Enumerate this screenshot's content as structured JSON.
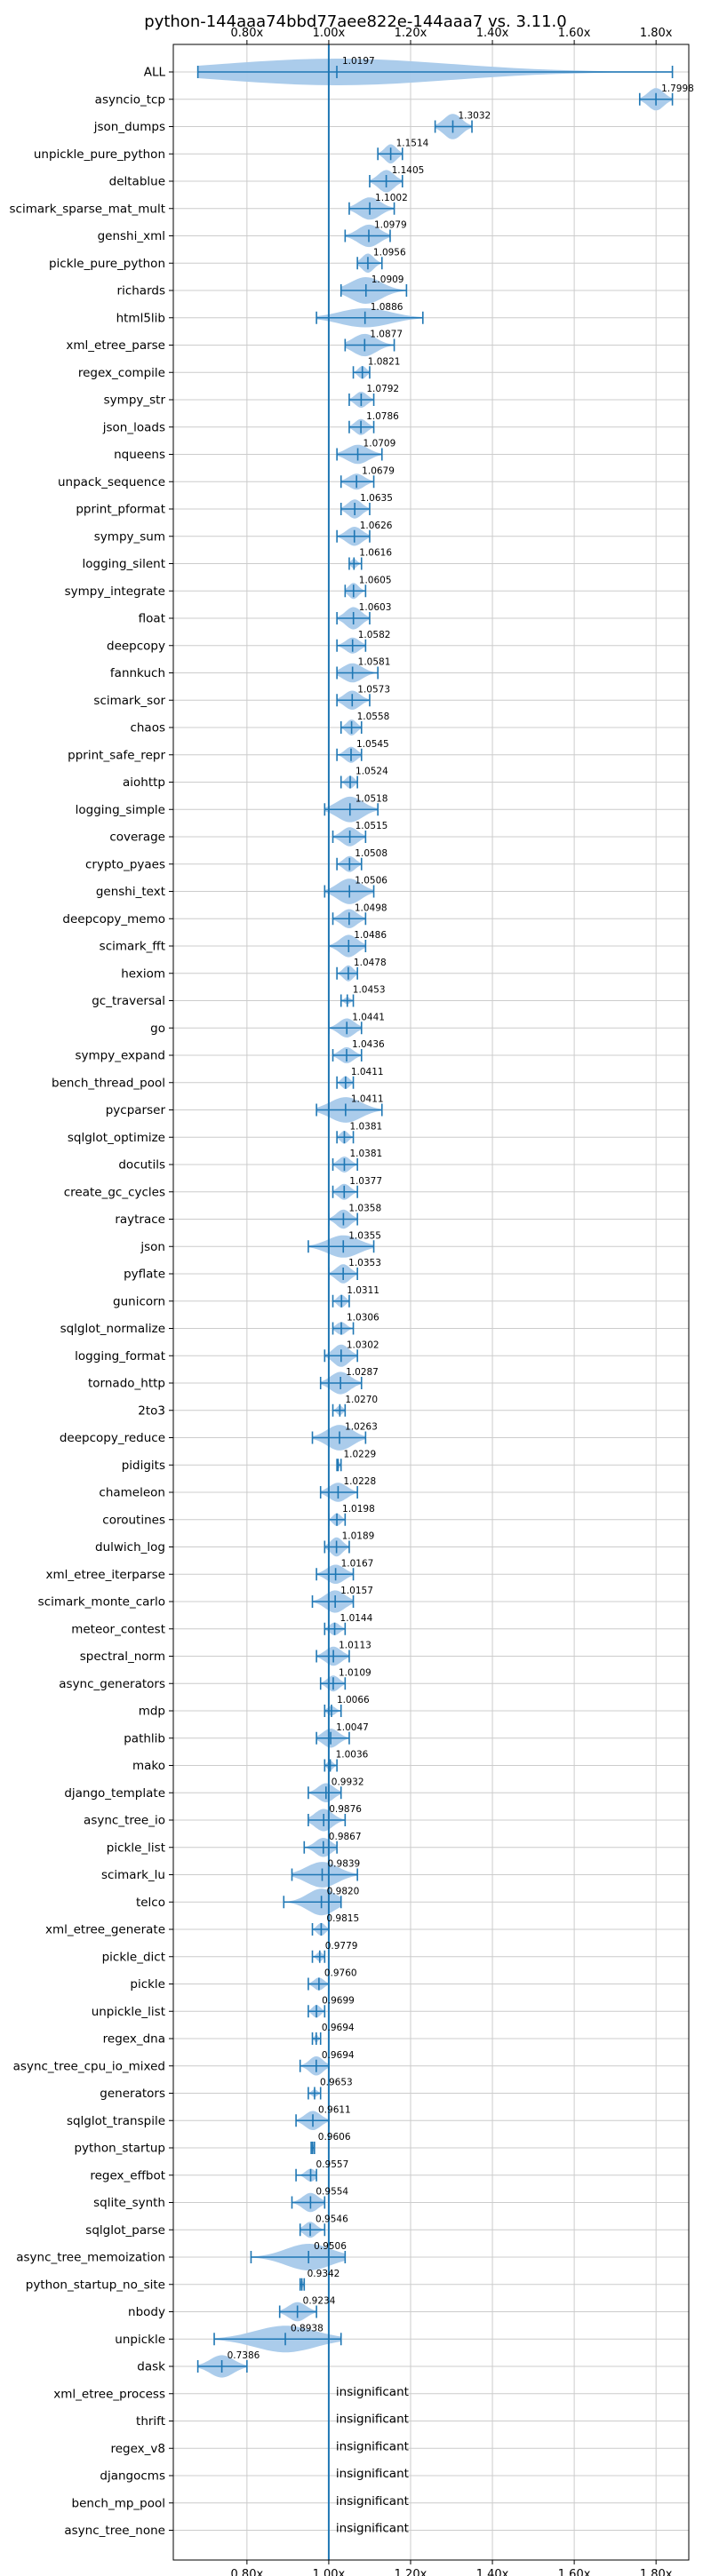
{
  "chart_data": {
    "type": "violin",
    "title": "python-144aaa74bbd77aee822e-144aaa7 vs. 3.11.0",
    "xlim": [
      0.62,
      1.88
    ],
    "x_ticks": [
      0.8,
      1.0,
      1.2,
      1.4,
      1.6,
      1.8
    ],
    "x_tick_labels": [
      "0.80x",
      "1.00x",
      "1.20x",
      "1.40x",
      "1.60x",
      "1.80x"
    ],
    "x_tick_position": "top-and-bottom",
    "reference_line": 1.0,
    "grid": true,
    "colors": {
      "violin": "#a7c9ea",
      "line": "#1f77b4",
      "grid": "#cccccc"
    },
    "insignificant_text": "insignificant",
    "benchmarks": [
      {
        "name": "ALL",
        "value": 1.0197,
        "label": "1.0197",
        "min": 0.68,
        "max": 1.84,
        "spread": 0.07
      },
      {
        "name": "asyncio_tcp",
        "value": 1.7998,
        "label": "1.7998",
        "min": 1.76,
        "max": 1.84,
        "spread": 0.035
      },
      {
        "name": "json_dumps",
        "value": 1.3032,
        "label": "1.3032",
        "min": 1.26,
        "max": 1.35,
        "spread": 0.04
      },
      {
        "name": "unpickle_pure_python",
        "value": 1.1514,
        "label": "1.1514",
        "min": 1.12,
        "max": 1.18,
        "spread": 0.03
      },
      {
        "name": "deltablue",
        "value": 1.1405,
        "label": "1.1405",
        "min": 1.1,
        "max": 1.18,
        "spread": 0.035
      },
      {
        "name": "scimark_sparse_mat_mult",
        "value": 1.1002,
        "label": "1.1002",
        "min": 1.05,
        "max": 1.16,
        "spread": 0.035
      },
      {
        "name": "genshi_xml",
        "value": 1.0979,
        "label": "1.0979",
        "min": 1.04,
        "max": 1.15,
        "spread": 0.035
      },
      {
        "name": "pickle_pure_python",
        "value": 1.0956,
        "label": "1.0956",
        "min": 1.07,
        "max": 1.13,
        "spread": 0.03
      },
      {
        "name": "richards",
        "value": 1.0909,
        "label": "1.0909",
        "min": 1.03,
        "max": 1.19,
        "spread": 0.05
      },
      {
        "name": "html5lib",
        "value": 1.0886,
        "label": "1.0886",
        "min": 0.97,
        "max": 1.23,
        "spread": 0.03
      },
      {
        "name": "xml_etree_parse",
        "value": 1.0877,
        "label": "1.0877",
        "min": 1.04,
        "max": 1.16,
        "spread": 0.035
      },
      {
        "name": "regex_compile",
        "value": 1.0821,
        "label": "1.0821",
        "min": 1.06,
        "max": 1.1,
        "spread": 0.02
      },
      {
        "name": "sympy_str",
        "value": 1.0792,
        "label": "1.0792",
        "min": 1.05,
        "max": 1.11,
        "spread": 0.025
      },
      {
        "name": "json_loads",
        "value": 1.0786,
        "label": "1.0786",
        "min": 1.05,
        "max": 1.11,
        "spread": 0.025
      },
      {
        "name": "nqueens",
        "value": 1.0709,
        "label": "1.0709",
        "min": 1.02,
        "max": 1.13,
        "spread": 0.03
      },
      {
        "name": "unpack_sequence",
        "value": 1.0679,
        "label": "1.0679",
        "min": 1.03,
        "max": 1.11,
        "spread": 0.025
      },
      {
        "name": "pprint_pformat",
        "value": 1.0635,
        "label": "1.0635",
        "min": 1.03,
        "max": 1.1,
        "spread": 0.03
      },
      {
        "name": "sympy_sum",
        "value": 1.0626,
        "label": "1.0626",
        "min": 1.02,
        "max": 1.1,
        "spread": 0.03
      },
      {
        "name": "logging_silent",
        "value": 1.0616,
        "label": "1.0616",
        "min": 1.05,
        "max": 1.08,
        "spread": 0.015
      },
      {
        "name": "sympy_integrate",
        "value": 1.0605,
        "label": "1.0605",
        "min": 1.04,
        "max": 1.09,
        "spread": 0.025
      },
      {
        "name": "float",
        "value": 1.0603,
        "label": "1.0603",
        "min": 1.02,
        "max": 1.1,
        "spread": 0.035
      },
      {
        "name": "deepcopy",
        "value": 1.0582,
        "label": "1.0582",
        "min": 1.02,
        "max": 1.09,
        "spread": 0.025
      },
      {
        "name": "fannkuch",
        "value": 1.0581,
        "label": "1.0581",
        "min": 1.02,
        "max": 1.12,
        "spread": 0.03
      },
      {
        "name": "scimark_sor",
        "value": 1.0573,
        "label": "1.0573",
        "min": 1.02,
        "max": 1.1,
        "spread": 0.03
      },
      {
        "name": "chaos",
        "value": 1.0558,
        "label": "1.0558",
        "min": 1.03,
        "max": 1.08,
        "spread": 0.025
      },
      {
        "name": "pprint_safe_repr",
        "value": 1.0545,
        "label": "1.0545",
        "min": 1.02,
        "max": 1.08,
        "spread": 0.025
      },
      {
        "name": "aiohttp",
        "value": 1.0524,
        "label": "1.0524",
        "min": 1.03,
        "max": 1.07,
        "spread": 0.02
      },
      {
        "name": "logging_simple",
        "value": 1.0518,
        "label": "1.0518",
        "min": 0.99,
        "max": 1.12,
        "spread": 0.04
      },
      {
        "name": "coverage",
        "value": 1.0515,
        "label": "1.0515",
        "min": 1.01,
        "max": 1.09,
        "spread": 0.03
      },
      {
        "name": "crypto_pyaes",
        "value": 1.0508,
        "label": "1.0508",
        "min": 1.02,
        "max": 1.08,
        "spread": 0.025
      },
      {
        "name": "genshi_text",
        "value": 1.0506,
        "label": "1.0506",
        "min": 0.99,
        "max": 1.11,
        "spread": 0.04
      },
      {
        "name": "deepcopy_memo",
        "value": 1.0498,
        "label": "1.0498",
        "min": 1.01,
        "max": 1.09,
        "spread": 0.03
      },
      {
        "name": "scimark_fft",
        "value": 1.0486,
        "label": "1.0486",
        "min": 1.0,
        "max": 1.09,
        "spread": 0.035
      },
      {
        "name": "hexiom",
        "value": 1.0478,
        "label": "1.0478",
        "min": 1.02,
        "max": 1.07,
        "spread": 0.025
      },
      {
        "name": "gc_traversal",
        "value": 1.0453,
        "label": "1.0453",
        "min": 1.03,
        "max": 1.06,
        "spread": 0.01
      },
      {
        "name": "go",
        "value": 1.0441,
        "label": "1.0441",
        "min": 1.0,
        "max": 1.08,
        "spread": 0.03
      },
      {
        "name": "sympy_expand",
        "value": 1.0436,
        "label": "1.0436",
        "min": 1.01,
        "max": 1.08,
        "spread": 0.025
      },
      {
        "name": "bench_thread_pool",
        "value": 1.0411,
        "label": "1.0411",
        "min": 1.02,
        "max": 1.06,
        "spread": 0.02
      },
      {
        "name": "pycparser",
        "value": 1.0411,
        "label": "1.0411",
        "min": 0.97,
        "max": 1.13,
        "spread": 0.04
      },
      {
        "name": "sqlglot_optimize",
        "value": 1.0381,
        "label": "1.0381",
        "min": 1.02,
        "max": 1.06,
        "spread": 0.02
      },
      {
        "name": "docutils",
        "value": 1.0381,
        "label": "1.0381",
        "min": 1.01,
        "max": 1.07,
        "spread": 0.025
      },
      {
        "name": "create_gc_cycles",
        "value": 1.0377,
        "label": "1.0377",
        "min": 1.01,
        "max": 1.07,
        "spread": 0.025
      },
      {
        "name": "raytrace",
        "value": 1.0358,
        "label": "1.0358",
        "min": 1.0,
        "max": 1.07,
        "spread": 0.03
      },
      {
        "name": "json",
        "value": 1.0355,
        "label": "1.0355",
        "min": 0.95,
        "max": 1.11,
        "spread": 0.035
      },
      {
        "name": "pyflate",
        "value": 1.0353,
        "label": "1.0353",
        "min": 1.0,
        "max": 1.07,
        "spread": 0.03
      },
      {
        "name": "gunicorn",
        "value": 1.0311,
        "label": "1.0311",
        "min": 1.01,
        "max": 1.05,
        "spread": 0.02
      },
      {
        "name": "sqlglot_normalize",
        "value": 1.0306,
        "label": "1.0306",
        "min": 1.01,
        "max": 1.06,
        "spread": 0.02
      },
      {
        "name": "logging_format",
        "value": 1.0302,
        "label": "1.0302",
        "min": 0.99,
        "max": 1.07,
        "spread": 0.035
      },
      {
        "name": "tornado_http",
        "value": 1.0287,
        "label": "1.0287",
        "min": 0.98,
        "max": 1.08,
        "spread": 0.035
      },
      {
        "name": "2to3",
        "value": 1.027,
        "label": "1.0270",
        "min": 1.01,
        "max": 1.04,
        "spread": 0.015
      },
      {
        "name": "deepcopy_reduce",
        "value": 1.0263,
        "label": "1.0263",
        "min": 0.96,
        "max": 1.09,
        "spread": 0.04
      },
      {
        "name": "pidigits",
        "value": 1.0229,
        "label": "1.0229",
        "min": 1.02,
        "max": 1.03,
        "spread": 0.006
      },
      {
        "name": "chameleon",
        "value": 1.0228,
        "label": "1.0228",
        "min": 0.98,
        "max": 1.07,
        "spread": 0.03
      },
      {
        "name": "coroutines",
        "value": 1.0198,
        "label": "1.0198",
        "min": 1.0,
        "max": 1.04,
        "spread": 0.02
      },
      {
        "name": "dulwich_log",
        "value": 1.0189,
        "label": "1.0189",
        "min": 0.99,
        "max": 1.05,
        "spread": 0.03
      },
      {
        "name": "xml_etree_iterparse",
        "value": 1.0167,
        "label": "1.0167",
        "min": 0.97,
        "max": 1.06,
        "spread": 0.03
      },
      {
        "name": "scimark_monte_carlo",
        "value": 1.0157,
        "label": "1.0157",
        "min": 0.96,
        "max": 1.06,
        "spread": 0.035
      },
      {
        "name": "meteor_contest",
        "value": 1.0144,
        "label": "1.0144",
        "min": 0.99,
        "max": 1.04,
        "spread": 0.02
      },
      {
        "name": "spectral_norm",
        "value": 1.0113,
        "label": "1.0113",
        "min": 0.97,
        "max": 1.05,
        "spread": 0.03
      },
      {
        "name": "async_generators",
        "value": 1.0109,
        "label": "1.0109",
        "min": 0.98,
        "max": 1.04,
        "spread": 0.025
      },
      {
        "name": "mdp",
        "value": 1.0066,
        "label": "1.0066",
        "min": 0.99,
        "max": 1.03,
        "spread": 0.015
      },
      {
        "name": "pathlib",
        "value": 1.0047,
        "label": "1.0047",
        "min": 0.97,
        "max": 1.05,
        "spread": 0.03
      },
      {
        "name": "mako",
        "value": 1.0036,
        "label": "1.0036",
        "min": 0.99,
        "max": 1.02,
        "spread": 0.015
      },
      {
        "name": "django_template",
        "value": 0.9932,
        "label": "0.9932",
        "min": 0.95,
        "max": 1.03,
        "spread": 0.03
      },
      {
        "name": "async_tree_io",
        "value": 0.9876,
        "label": "0.9876",
        "min": 0.95,
        "max": 1.04,
        "spread": 0.035
      },
      {
        "name": "pickle_list",
        "value": 0.9867,
        "label": "0.9867",
        "min": 0.94,
        "max": 1.02,
        "spread": 0.03
      },
      {
        "name": "scimark_lu",
        "value": 0.9839,
        "label": "0.9839",
        "min": 0.91,
        "max": 1.07,
        "spread": 0.04
      },
      {
        "name": "telco",
        "value": 0.982,
        "label": "0.9820",
        "min": 0.89,
        "max": 1.03,
        "spread": 0.05
      },
      {
        "name": "xml_etree_generate",
        "value": 0.9815,
        "label": "0.9815",
        "min": 0.96,
        "max": 1.0,
        "spread": 0.02
      },
      {
        "name": "pickle_dict",
        "value": 0.9779,
        "label": "0.9779",
        "min": 0.96,
        "max": 0.99,
        "spread": 0.015
      },
      {
        "name": "pickle",
        "value": 0.976,
        "label": "0.9760",
        "min": 0.95,
        "max": 1.0,
        "spread": 0.02
      },
      {
        "name": "unpickle_list",
        "value": 0.9699,
        "label": "0.9699",
        "min": 0.95,
        "max": 0.99,
        "spread": 0.02
      },
      {
        "name": "regex_dna",
        "value": 0.9694,
        "label": "0.9694",
        "min": 0.96,
        "max": 0.98,
        "spread": 0.012
      },
      {
        "name": "async_tree_cpu_io_mixed",
        "value": 0.9694,
        "label": "0.9694",
        "min": 0.93,
        "max": 1.0,
        "spread": 0.03
      },
      {
        "name": "generators",
        "value": 0.9653,
        "label": "0.9653",
        "min": 0.95,
        "max": 0.98,
        "spread": 0.012
      },
      {
        "name": "sqlglot_transpile",
        "value": 0.9611,
        "label": "0.9611",
        "min": 0.92,
        "max": 1.0,
        "spread": 0.03
      },
      {
        "name": "python_startup",
        "value": 0.9606,
        "label": "0.9606",
        "min": 0.957,
        "max": 0.965,
        "spread": 0.005
      },
      {
        "name": "regex_effbot",
        "value": 0.9557,
        "label": "0.9557",
        "min": 0.92,
        "max": 0.97,
        "spread": 0.02
      },
      {
        "name": "sqlite_synth",
        "value": 0.9554,
        "label": "0.9554",
        "min": 0.91,
        "max": 0.99,
        "spread": 0.03
      },
      {
        "name": "sqlglot_parse",
        "value": 0.9546,
        "label": "0.9546",
        "min": 0.93,
        "max": 0.99,
        "spread": 0.025
      },
      {
        "name": "async_tree_memoization",
        "value": 0.9506,
        "label": "0.9506",
        "min": 0.81,
        "max": 1.04,
        "spread": 0.045
      },
      {
        "name": "python_startup_no_site",
        "value": 0.9342,
        "label": "0.9342",
        "min": 0.93,
        "max": 0.94,
        "spread": 0.005
      },
      {
        "name": "nbody",
        "value": 0.9234,
        "label": "0.9234",
        "min": 0.88,
        "max": 0.97,
        "spread": 0.03
      },
      {
        "name": "unpickle",
        "value": 0.8938,
        "label": "0.8938",
        "min": 0.72,
        "max": 1.03,
        "spread": 0.055
      },
      {
        "name": "dask",
        "value": 0.7386,
        "label": "0.7386",
        "min": 0.68,
        "max": 0.8,
        "spread": 0.035
      },
      {
        "name": "xml_etree_process",
        "value": null,
        "label": "insignificant"
      },
      {
        "name": "thrift",
        "value": null,
        "label": "insignificant"
      },
      {
        "name": "regex_v8",
        "value": null,
        "label": "insignificant"
      },
      {
        "name": "djangocms",
        "value": null,
        "label": "insignificant"
      },
      {
        "name": "bench_mp_pool",
        "value": null,
        "label": "insignificant"
      },
      {
        "name": "async_tree_none",
        "value": null,
        "label": "insignificant"
      }
    ]
  }
}
